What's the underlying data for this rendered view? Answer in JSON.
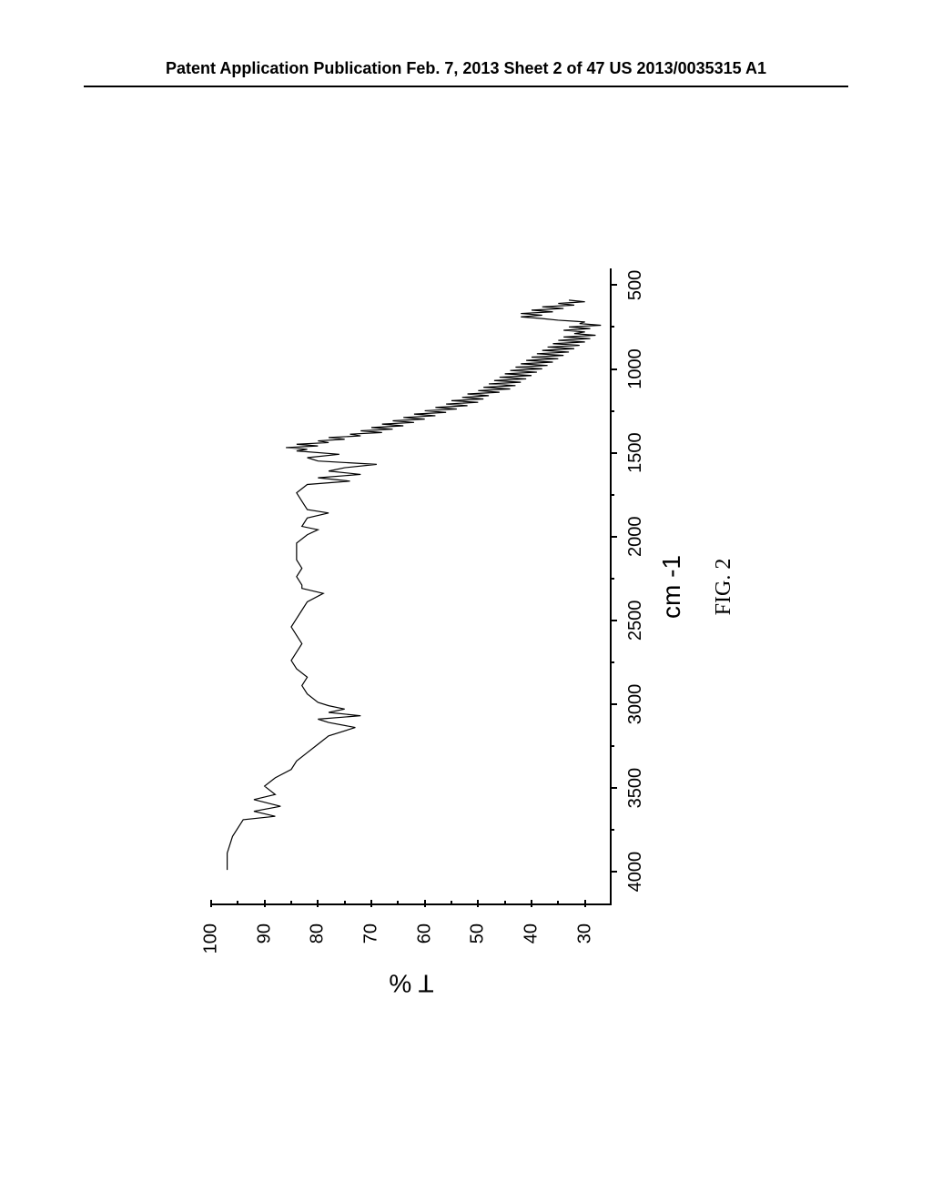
{
  "header": {
    "left": "Patent Application Publication",
    "center": "Feb. 7, 2013  Sheet 2 of 47",
    "right": "US 2013/0035315 A1"
  },
  "chart": {
    "type": "line",
    "figure_label": "FIG. 2",
    "y_axis": {
      "title": "T %",
      "min": 25,
      "max": 100,
      "ticks": [
        30,
        40,
        50,
        60,
        70,
        80,
        90,
        100
      ],
      "minor_step": 5
    },
    "x_axis": {
      "title": "cm -1",
      "min": 4200,
      "max": 400,
      "ticks": [
        4000,
        3500,
        3000,
        2500,
        2000,
        1500,
        1000,
        500
      ],
      "minor_step": 250
    },
    "line_color": "#000000",
    "line_width": 1.2,
    "background_color": "#ffffff",
    "data_points": [
      [
        4000,
        97
      ],
      [
        3900,
        97
      ],
      [
        3800,
        96
      ],
      [
        3700,
        94
      ],
      [
        3680,
        88
      ],
      [
        3650,
        92
      ],
      [
        3620,
        87
      ],
      [
        3580,
        92
      ],
      [
        3550,
        88
      ],
      [
        3500,
        90
      ],
      [
        3450,
        88
      ],
      [
        3400,
        85
      ],
      [
        3350,
        84
      ],
      [
        3300,
        82
      ],
      [
        3250,
        80
      ],
      [
        3200,
        78
      ],
      [
        3150,
        73
      ],
      [
        3120,
        78
      ],
      [
        3100,
        80
      ],
      [
        3080,
        72
      ],
      [
        3060,
        78
      ],
      [
        3040,
        75
      ],
      [
        3020,
        78
      ],
      [
        3000,
        80
      ],
      [
        2950,
        82
      ],
      [
        2900,
        83
      ],
      [
        2850,
        82
      ],
      [
        2800,
        84
      ],
      [
        2750,
        85
      ],
      [
        2700,
        84
      ],
      [
        2650,
        83
      ],
      [
        2600,
        84
      ],
      [
        2550,
        85
      ],
      [
        2500,
        84
      ],
      [
        2450,
        83
      ],
      [
        2400,
        82
      ],
      [
        2350,
        79
      ],
      [
        2320,
        83
      ],
      [
        2300,
        83
      ],
      [
        2250,
        84
      ],
      [
        2200,
        83
      ],
      [
        2150,
        84
      ],
      [
        2100,
        84
      ],
      [
        2050,
        84
      ],
      [
        2000,
        82
      ],
      [
        1970,
        80
      ],
      [
        1950,
        83
      ],
      [
        1900,
        82
      ],
      [
        1870,
        78
      ],
      [
        1850,
        82
      ],
      [
        1800,
        83
      ],
      [
        1750,
        84
      ],
      [
        1700,
        82
      ],
      [
        1680,
        74
      ],
      [
        1660,
        80
      ],
      [
        1640,
        72
      ],
      [
        1620,
        78
      ],
      [
        1600,
        75
      ],
      [
        1580,
        69
      ],
      [
        1560,
        80
      ],
      [
        1540,
        82
      ],
      [
        1520,
        76
      ],
      [
        1500,
        84
      ],
      [
        1490,
        82
      ],
      [
        1480,
        86
      ],
      [
        1470,
        80
      ],
      [
        1460,
        84
      ],
      [
        1450,
        78
      ],
      [
        1440,
        80
      ],
      [
        1430,
        75
      ],
      [
        1420,
        78
      ],
      [
        1410,
        72
      ],
      [
        1400,
        74
      ],
      [
        1390,
        68
      ],
      [
        1380,
        72
      ],
      [
        1370,
        66
      ],
      [
        1360,
        70
      ],
      [
        1350,
        64
      ],
      [
        1340,
        68
      ],
      [
        1330,
        62
      ],
      [
        1320,
        66
      ],
      [
        1310,
        60
      ],
      [
        1300,
        64
      ],
      [
        1290,
        58
      ],
      [
        1280,
        62
      ],
      [
        1270,
        56
      ],
      [
        1260,
        60
      ],
      [
        1250,
        54
      ],
      [
        1240,
        58
      ],
      [
        1230,
        52
      ],
      [
        1220,
        56
      ],
      [
        1210,
        50
      ],
      [
        1200,
        55
      ],
      [
        1190,
        49
      ],
      [
        1180,
        53
      ],
      [
        1170,
        48
      ],
      [
        1160,
        52
      ],
      [
        1150,
        46
      ],
      [
        1140,
        50
      ],
      [
        1130,
        44
      ],
      [
        1120,
        49
      ],
      [
        1110,
        43
      ],
      [
        1100,
        48
      ],
      [
        1090,
        42
      ],
      [
        1080,
        47
      ],
      [
        1070,
        41
      ],
      [
        1060,
        46
      ],
      [
        1050,
        40
      ],
      [
        1040,
        45
      ],
      [
        1030,
        39
      ],
      [
        1020,
        44
      ],
      [
        1010,
        38
      ],
      [
        1000,
        43
      ],
      [
        990,
        37
      ],
      [
        980,
        42
      ],
      [
        970,
        36
      ],
      [
        960,
        41
      ],
      [
        950,
        35
      ],
      [
        940,
        40
      ],
      [
        930,
        34
      ],
      [
        920,
        39
      ],
      [
        910,
        33
      ],
      [
        900,
        38
      ],
      [
        890,
        32
      ],
      [
        880,
        37
      ],
      [
        870,
        31
      ],
      [
        860,
        36
      ],
      [
        850,
        30
      ],
      [
        840,
        35
      ],
      [
        830,
        29
      ],
      [
        820,
        34
      ],
      [
        810,
        28
      ],
      [
        800,
        32
      ],
      [
        790,
        30
      ],
      [
        780,
        34
      ],
      [
        770,
        29
      ],
      [
        760,
        33
      ],
      [
        750,
        27
      ],
      [
        740,
        31
      ],
      [
        730,
        30
      ],
      [
        720,
        35
      ],
      [
        710,
        38
      ],
      [
        700,
        42
      ],
      [
        690,
        38
      ],
      [
        680,
        42
      ],
      [
        670,
        36
      ],
      [
        660,
        40
      ],
      [
        650,
        34
      ],
      [
        640,
        38
      ],
      [
        630,
        32
      ],
      [
        620,
        35
      ],
      [
        610,
        30
      ],
      [
        600,
        33
      ]
    ]
  }
}
